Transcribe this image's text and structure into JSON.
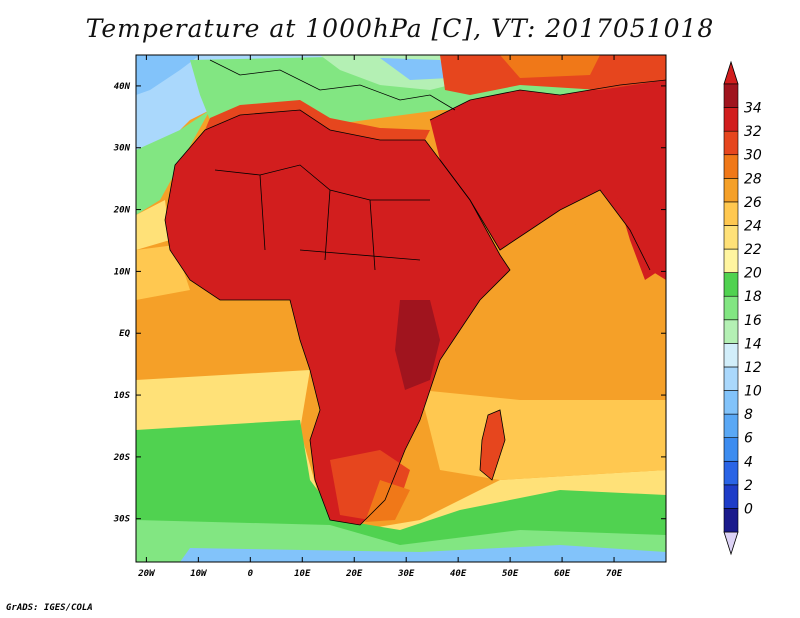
{
  "title": "Temperature at 1000hPa [C], VT: 2017051018",
  "credit": "GrADS: IGES/COLA",
  "map": {
    "variable": "Temperature at 1000hPa",
    "units": "C",
    "valid_time": "2017051018",
    "lon_range": [
      -22,
      80
    ],
    "lat_range": [
      -37,
      45
    ],
    "x_ticks": [
      {
        "value": -20,
        "label": "20W"
      },
      {
        "value": -10,
        "label": "10W"
      },
      {
        "value": 0,
        "label": "0"
      },
      {
        "value": 10,
        "label": "10E"
      },
      {
        "value": 20,
        "label": "20E"
      },
      {
        "value": 30,
        "label": "30E"
      },
      {
        "value": 40,
        "label": "40E"
      },
      {
        "value": 50,
        "label": "50E"
      },
      {
        "value": 60,
        "label": "60E"
      },
      {
        "value": 70,
        "label": "70E"
      }
    ],
    "y_ticks": [
      {
        "value": 40,
        "label": "40N"
      },
      {
        "value": 30,
        "label": "30N"
      },
      {
        "value": 20,
        "label": "20N"
      },
      {
        "value": 10,
        "label": "10N"
      },
      {
        "value": 0,
        "label": "EQ"
      },
      {
        "value": -10,
        "label": "10S"
      },
      {
        "value": -20,
        "label": "20S"
      },
      {
        "value": -30,
        "label": "30S"
      }
    ]
  },
  "colorbar": {
    "levels": [
      0,
      2,
      4,
      6,
      8,
      10,
      12,
      14,
      16,
      18,
      20,
      22,
      24,
      26,
      28,
      30,
      32,
      34
    ],
    "labels": [
      "0",
      "2",
      "4",
      "6",
      "8",
      "10",
      "12",
      "14",
      "16",
      "18",
      "20",
      "22",
      "24",
      "26",
      "28",
      "30",
      "32",
      "34"
    ],
    "colors": [
      "#1a1a8c",
      "#1e3cc8",
      "#2a64e6",
      "#3c8cf0",
      "#5aa8f5",
      "#82c3fa",
      "#aad8fc",
      "#d2eefa",
      "#b4f0b4",
      "#82e682",
      "#50d250",
      "#fff5a0",
      "#ffe178",
      "#ffc850",
      "#f5a028",
      "#f07818",
      "#e6461e",
      "#d21e1e",
      "#a0141e"
    ],
    "under_color": "#dcd2f5",
    "over_color": "#d21e1e"
  }
}
